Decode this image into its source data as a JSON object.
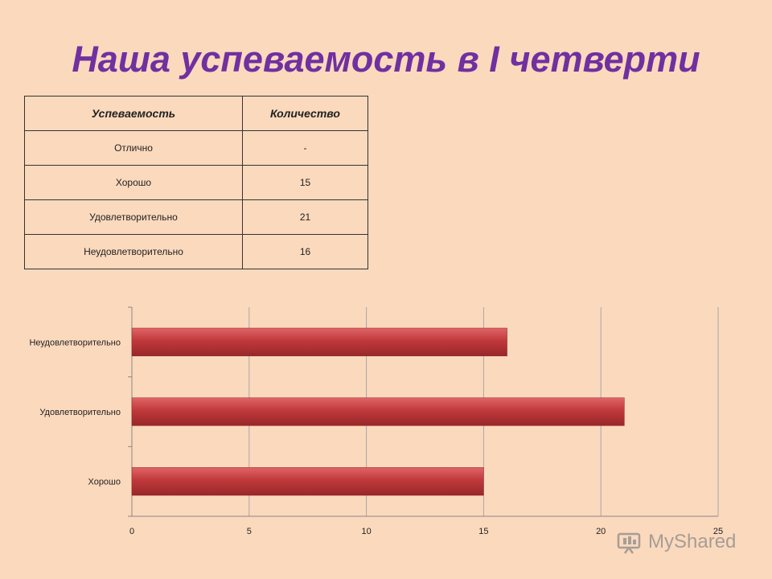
{
  "title": "Наша успеваемость в I четверти",
  "table": {
    "headers": [
      "Успеваемость",
      "Количество"
    ],
    "rows": [
      [
        "Отлично",
        "-"
      ],
      [
        "Хорошо",
        "15"
      ],
      [
        "Удовлетворительно",
        "21"
      ],
      [
        "Неудовлетворительно",
        "16"
      ]
    ]
  },
  "chart_data": {
    "type": "bar",
    "orientation": "horizontal",
    "categories": [
      "Хорошо",
      "Удовлетворительно",
      "Неудовлетворительно"
    ],
    "values": [
      15,
      21,
      16
    ],
    "xlim": [
      0,
      25
    ],
    "xticks": [
      0,
      5,
      10,
      15,
      20,
      25
    ],
    "grid": true,
    "bar_color": "#c0393b"
  },
  "watermark": {
    "text": "MyShared"
  },
  "colors": {
    "title": "#7030a0",
    "background": "#fbd9bd"
  }
}
